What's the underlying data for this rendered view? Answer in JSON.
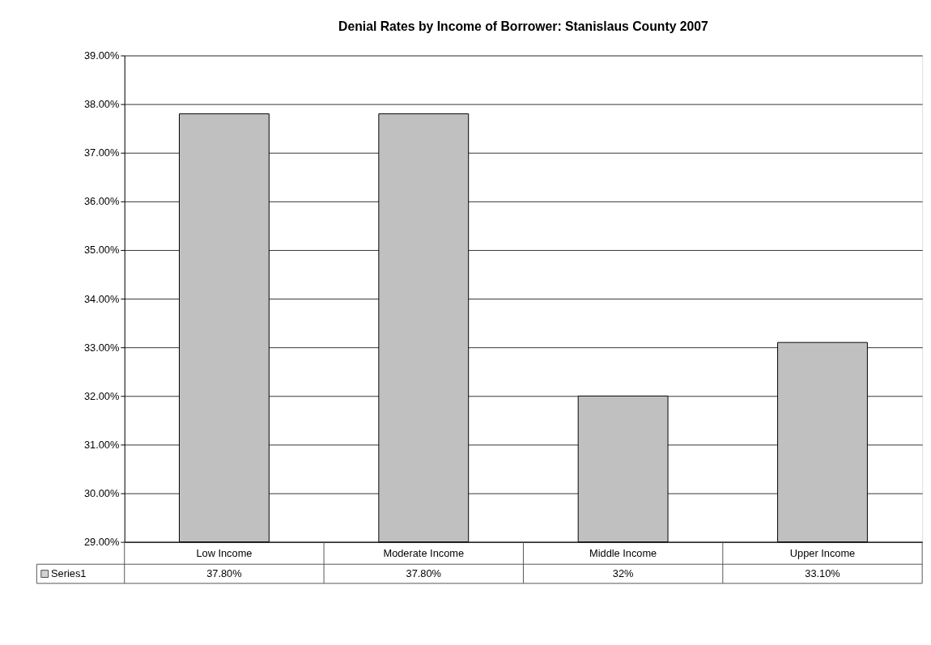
{
  "chart_data": {
    "type": "bar",
    "title": "Denial Rates by Income of Borrower: Stanislaus County 2007",
    "categories": [
      "Low Income",
      "Moderate Income",
      "Middle Income",
      "Upper Income"
    ],
    "series": [
      {
        "name": "Series1",
        "color": "#c0c0c0",
        "values": [
          37.8,
          37.8,
          32,
          33.1
        ],
        "value_labels": [
          "37.80%",
          "37.80%",
          "32%",
          "33.10%"
        ]
      }
    ],
    "ylim": [
      29,
      39
    ],
    "yticks": [
      {
        "value": 29,
        "label": "29.00%"
      },
      {
        "value": 30,
        "label": "30.00%"
      },
      {
        "value": 31,
        "label": "31.00%"
      },
      {
        "value": 32,
        "label": "32.00%"
      },
      {
        "value": 33,
        "label": "33.00%"
      },
      {
        "value": 34,
        "label": "34.00%"
      },
      {
        "value": 35,
        "label": "35.00%"
      },
      {
        "value": 36,
        "label": "36.00%"
      },
      {
        "value": 37,
        "label": "37.00%"
      },
      {
        "value": 38,
        "label": "38.00%"
      },
      {
        "value": 39,
        "label": "39.00%"
      }
    ],
    "grid": "y",
    "legend": "bottom"
  }
}
